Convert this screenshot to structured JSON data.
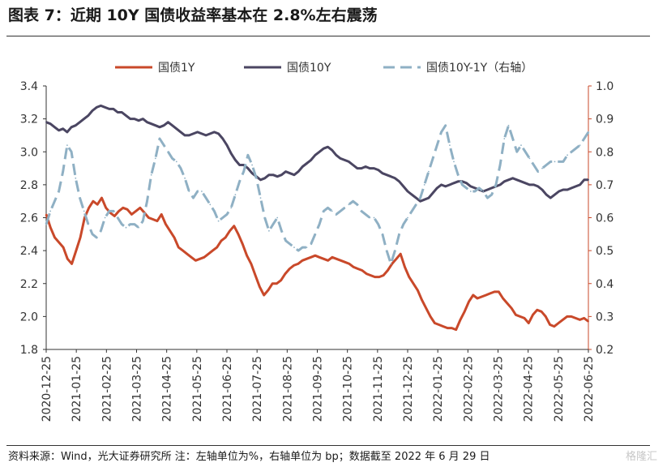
{
  "header": {
    "title": "图表 7：近期 10Y 国债收益率基本在 2.8%左右震荡"
  },
  "footer": {
    "source": "资料来源：Wind，光大证券研究所     注：左轴单位为%，右轴单位为 bp；数据截至 2022 年 6 月 29 日",
    "watermark": "格隆汇"
  },
  "chart_data": {
    "type": "line",
    "x_tick_labels": [
      "2020-12-25",
      "2021-01-25",
      "2021-02-25",
      "2021-03-25",
      "2021-04-25",
      "2021-05-25",
      "2021-06-25",
      "2021-07-25",
      "2021-08-25",
      "2021-09-25",
      "2021-10-25",
      "2021-11-25",
      "2021-12-25",
      "2022-01-25",
      "2022-02-25",
      "2022-03-25",
      "2022-04-25",
      "2022-05-25",
      "2022-06-25"
    ],
    "y_left": {
      "ticks": [
        "3.4",
        "3.2",
        "3.0",
        "2.8",
        "2.6",
        "2.4",
        "2.2",
        "2.0",
        "1.8"
      ],
      "ylim": [
        1.8,
        3.4
      ]
    },
    "y_right": {
      "ticks": [
        "1.0",
        "0.9",
        "0.8",
        "0.7",
        "0.6",
        "0.5",
        "0.4",
        "0.3",
        "0.2"
      ],
      "ylim": [
        0.2,
        1.0
      ]
    },
    "legend_position": "top",
    "series": [
      {
        "name": "国债1Y",
        "color": "#C9492A",
        "dash": "solid",
        "axis": "left",
        "values": [
          2.62,
          2.54,
          2.48,
          2.45,
          2.42,
          2.35,
          2.32,
          2.4,
          2.48,
          2.6,
          2.66,
          2.7,
          2.68,
          2.72,
          2.66,
          2.63,
          2.61,
          2.64,
          2.66,
          2.65,
          2.62,
          2.64,
          2.66,
          2.63,
          2.6,
          2.59,
          2.58,
          2.62,
          2.56,
          2.52,
          2.48,
          2.42,
          2.4,
          2.38,
          2.36,
          2.34,
          2.35,
          2.36,
          2.38,
          2.4,
          2.42,
          2.46,
          2.48,
          2.52,
          2.55,
          2.5,
          2.44,
          2.37,
          2.32,
          2.25,
          2.18,
          2.13,
          2.16,
          2.2,
          2.2,
          2.22,
          2.26,
          2.29,
          2.31,
          2.32,
          2.34,
          2.35,
          2.36,
          2.37,
          2.36,
          2.35,
          2.34,
          2.36,
          2.35,
          2.34,
          2.33,
          2.32,
          2.3,
          2.29,
          2.28,
          2.26,
          2.25,
          2.24,
          2.24,
          2.25,
          2.28,
          2.32,
          2.35,
          2.38,
          2.3,
          2.24,
          2.2,
          2.16,
          2.1,
          2.05,
          2.0,
          1.96,
          1.95,
          1.94,
          1.93,
          1.93,
          1.92,
          1.98,
          2.03,
          2.09,
          2.13,
          2.11,
          2.12,
          2.13,
          2.14,
          2.15,
          2.15,
          2.11,
          2.08,
          2.05,
          2.01,
          2.0,
          1.99,
          1.96,
          2.01,
          2.04,
          2.03,
          2.0,
          1.95,
          1.94,
          1.96,
          1.98,
          2.0,
          2.0,
          1.99,
          1.98,
          1.99,
          1.97
        ]
      },
      {
        "name": "国债10Y",
        "color": "#4B4662",
        "dash": "solid",
        "axis": "left",
        "values": [
          3.18,
          3.17,
          3.15,
          3.13,
          3.14,
          3.12,
          3.15,
          3.16,
          3.18,
          3.2,
          3.22,
          3.25,
          3.27,
          3.28,
          3.27,
          3.26,
          3.26,
          3.24,
          3.24,
          3.22,
          3.2,
          3.2,
          3.19,
          3.2,
          3.18,
          3.17,
          3.16,
          3.15,
          3.16,
          3.18,
          3.16,
          3.14,
          3.12,
          3.1,
          3.1,
          3.11,
          3.12,
          3.11,
          3.1,
          3.11,
          3.12,
          3.11,
          3.08,
          3.04,
          2.99,
          2.95,
          2.92,
          2.92,
          2.9,
          2.87,
          2.85,
          2.83,
          2.84,
          2.86,
          2.86,
          2.85,
          2.86,
          2.88,
          2.87,
          2.86,
          2.88,
          2.91,
          2.93,
          2.95,
          2.98,
          3.0,
          3.02,
          3.03,
          3.01,
          2.98,
          2.96,
          2.95,
          2.94,
          2.92,
          2.9,
          2.9,
          2.91,
          2.9,
          2.9,
          2.89,
          2.87,
          2.86,
          2.85,
          2.84,
          2.82,
          2.79,
          2.76,
          2.74,
          2.72,
          2.7,
          2.71,
          2.72,
          2.75,
          2.78,
          2.8,
          2.79,
          2.8,
          2.81,
          2.82,
          2.82,
          2.81,
          2.79,
          2.78,
          2.77,
          2.76,
          2.77,
          2.78,
          2.79,
          2.8,
          2.82,
          2.83,
          2.84,
          2.83,
          2.82,
          2.81,
          2.8,
          2.8,
          2.79,
          2.77,
          2.74,
          2.72,
          2.74,
          2.76,
          2.77,
          2.77,
          2.78,
          2.79,
          2.8,
          2.83,
          2.83
        ]
      },
      {
        "name": "国债10Y-1Y（右轴）",
        "color": "#8FB0C4",
        "dash": "dashed",
        "axis": "right",
        "values": [
          0.58,
          0.62,
          0.65,
          0.68,
          0.74,
          0.82,
          0.8,
          0.72,
          0.66,
          0.62,
          0.58,
          0.55,
          0.54,
          0.56,
          0.6,
          0.62,
          0.62,
          0.6,
          0.58,
          0.57,
          0.58,
          0.58,
          0.57,
          0.59,
          0.65,
          0.73,
          0.78,
          0.84,
          0.82,
          0.8,
          0.78,
          0.77,
          0.75,
          0.72,
          0.68,
          0.66,
          0.68,
          0.68,
          0.66,
          0.64,
          0.62,
          0.59,
          0.6,
          0.61,
          0.63,
          0.67,
          0.71,
          0.74,
          0.79,
          0.76,
          0.72,
          0.66,
          0.6,
          0.56,
          0.58,
          0.6,
          0.56,
          0.53,
          0.52,
          0.51,
          0.5,
          0.51,
          0.51,
          0.52,
          0.55,
          0.58,
          0.62,
          0.63,
          0.62,
          0.61,
          0.62,
          0.63,
          0.64,
          0.65,
          0.64,
          0.62,
          0.61,
          0.6,
          0.6,
          0.58,
          0.55,
          0.5,
          0.46,
          0.5,
          0.55,
          0.58,
          0.6,
          0.62,
          0.64,
          0.66,
          0.7,
          0.74,
          0.78,
          0.82,
          0.86,
          0.88,
          0.82,
          0.77,
          0.73,
          0.7,
          0.69,
          0.68,
          0.68,
          0.69,
          0.68,
          0.66,
          0.67,
          0.7,
          0.76,
          0.84,
          0.88,
          0.84,
          0.8,
          0.82,
          0.8,
          0.78,
          0.76,
          0.74,
          0.75,
          0.76,
          0.77,
          0.77,
          0.77,
          0.77,
          0.79,
          0.8,
          0.81,
          0.82,
          0.84,
          0.86
        ]
      }
    ]
  }
}
